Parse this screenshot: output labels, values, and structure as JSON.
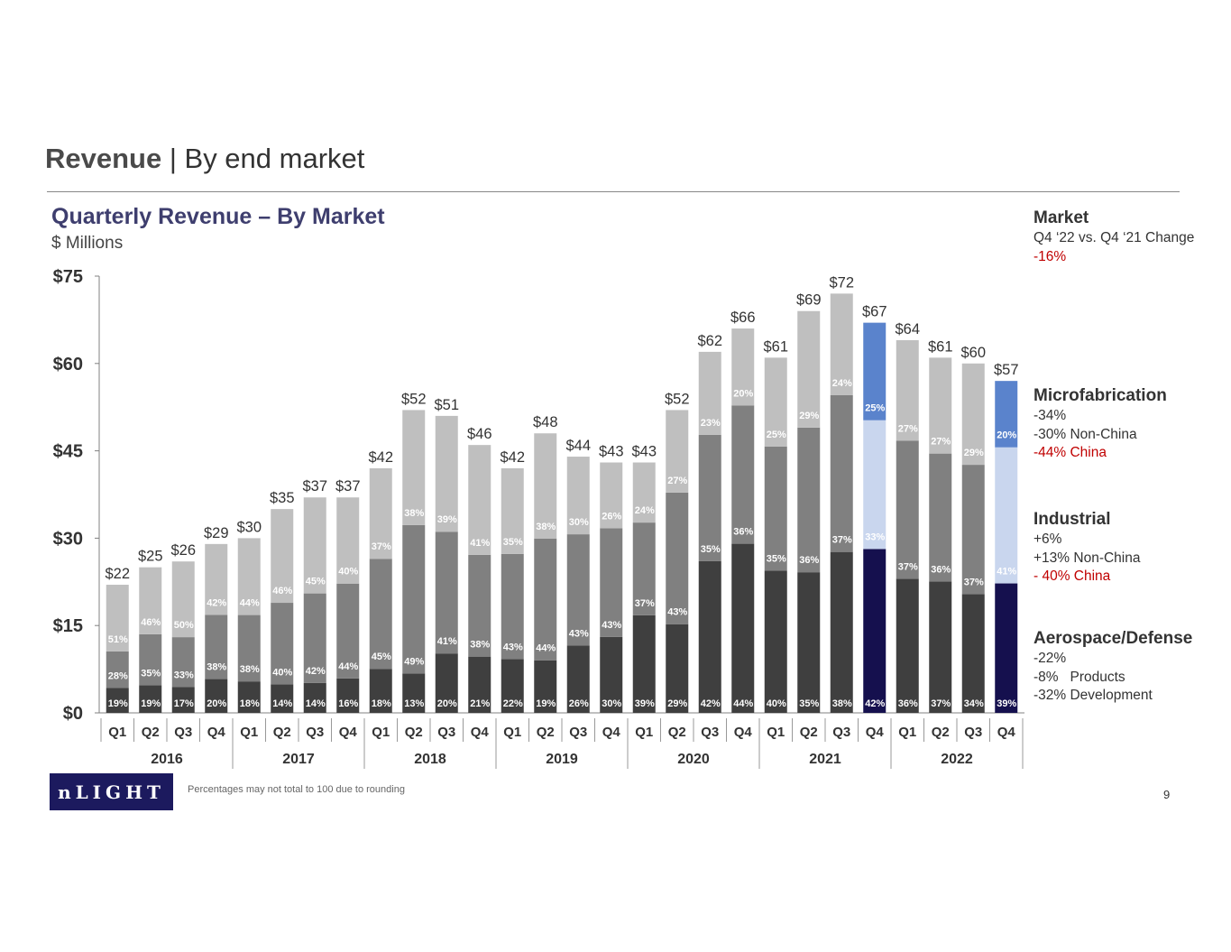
{
  "header": {
    "title_bold": "Revenue",
    "title_rest": " | By end market"
  },
  "chart_data": {
    "type": "bar",
    "stacked": true,
    "title": "Quarterly Revenue – By Market",
    "subtitle": "$ Millions",
    "ylim": [
      0,
      75
    ],
    "yticks": [
      0,
      15,
      30,
      45,
      60,
      75
    ],
    "ytick_labels": [
      "$0",
      "$15",
      "$30",
      "$45",
      "$60",
      "$75"
    ],
    "categories": [
      "Q1",
      "Q2",
      "Q3",
      "Q4",
      "Q1",
      "Q2",
      "Q3",
      "Q4",
      "Q1",
      "Q2",
      "Q3",
      "Q4",
      "Q1",
      "Q2",
      "Q3",
      "Q4",
      "Q1",
      "Q2",
      "Q3",
      "Q4",
      "Q1",
      "Q2",
      "Q3",
      "Q4",
      "Q1",
      "Q2",
      "Q3",
      "Q4"
    ],
    "years": [
      "2016",
      "2017",
      "2018",
      "2019",
      "2020",
      "2021",
      "2022"
    ],
    "totals": [
      22,
      25,
      26,
      29,
      30,
      35,
      37,
      37,
      42,
      52,
      51,
      46,
      42,
      48,
      44,
      43,
      43,
      52,
      62,
      66,
      61,
      69,
      72,
      67,
      64,
      61,
      60,
      57
    ],
    "total_labels": [
      "$22",
      "$25",
      "$26",
      "$29",
      "$30",
      "$35",
      "$37",
      "$37",
      "$42",
      "$52",
      "$51",
      "$46",
      "$42",
      "$48",
      "$44",
      "$43",
      "$43",
      "$52",
      "$62",
      "$66",
      "$61",
      "$69",
      "$72",
      "$67",
      "$64",
      "$61",
      "$60",
      "$57"
    ],
    "highlight_indices": [
      23,
      27
    ],
    "series": [
      {
        "name": "Aerospace/Defense",
        "percent": [
          19,
          19,
          17,
          20,
          18,
          14,
          14,
          16,
          18,
          13,
          20,
          21,
          22,
          19,
          26,
          30,
          39,
          29,
          42,
          44,
          40,
          35,
          38,
          42,
          36,
          37,
          34,
          39
        ]
      },
      {
        "name": "Industrial",
        "percent": [
          28,
          35,
          33,
          38,
          38,
          40,
          42,
          44,
          45,
          49,
          41,
          38,
          43,
          44,
          43,
          43,
          37,
          43,
          35,
          36,
          35,
          36,
          37,
          33,
          37,
          36,
          37,
          41
        ]
      },
      {
        "name": "Microfabrication",
        "percent": [
          51,
          46,
          50,
          42,
          44,
          46,
          45,
          40,
          37,
          38,
          39,
          41,
          35,
          38,
          30,
          26,
          24,
          27,
          23,
          20,
          25,
          29,
          24,
          25,
          27,
          27,
          29,
          20
        ]
      }
    ],
    "colors": {
      "aerospace": "#3f3f3f",
      "industrial": "#808080",
      "microfab": "#bfbfbf",
      "aerospace_hl": "#15104e",
      "industrial_hl": "#c9d6ee",
      "microfab_hl": "#5a83cc",
      "axis": "#808080",
      "pct_on_dark": "#ffffff",
      "pct_on_light": "#ffffff"
    },
    "footnote": "Percentages may not total to 100 due to rounding"
  },
  "sidebar": {
    "market": {
      "heading": "Market",
      "line1": "Q4 ‘22 vs. Q4 ‘21 Change",
      "line2": "-16%"
    },
    "microfab": {
      "heading": "Microfabrication",
      "line1": "-34%",
      "line2": "-30% Non-China",
      "line3": "-44% China"
    },
    "industrial": {
      "heading": "Industrial",
      "line1": "+6%",
      "line2": "+13% Non-China",
      "line3": "- 40% China"
    },
    "aerospace": {
      "heading": "Aerospace/Defense",
      "line1": "-22%",
      "line2": "-8%   Products",
      "line3": "-32% Development"
    }
  },
  "footer": {
    "logo_text": "nLIGHT",
    "footnote": "Percentages may not total to 100 due to rounding",
    "page_number": "9"
  }
}
